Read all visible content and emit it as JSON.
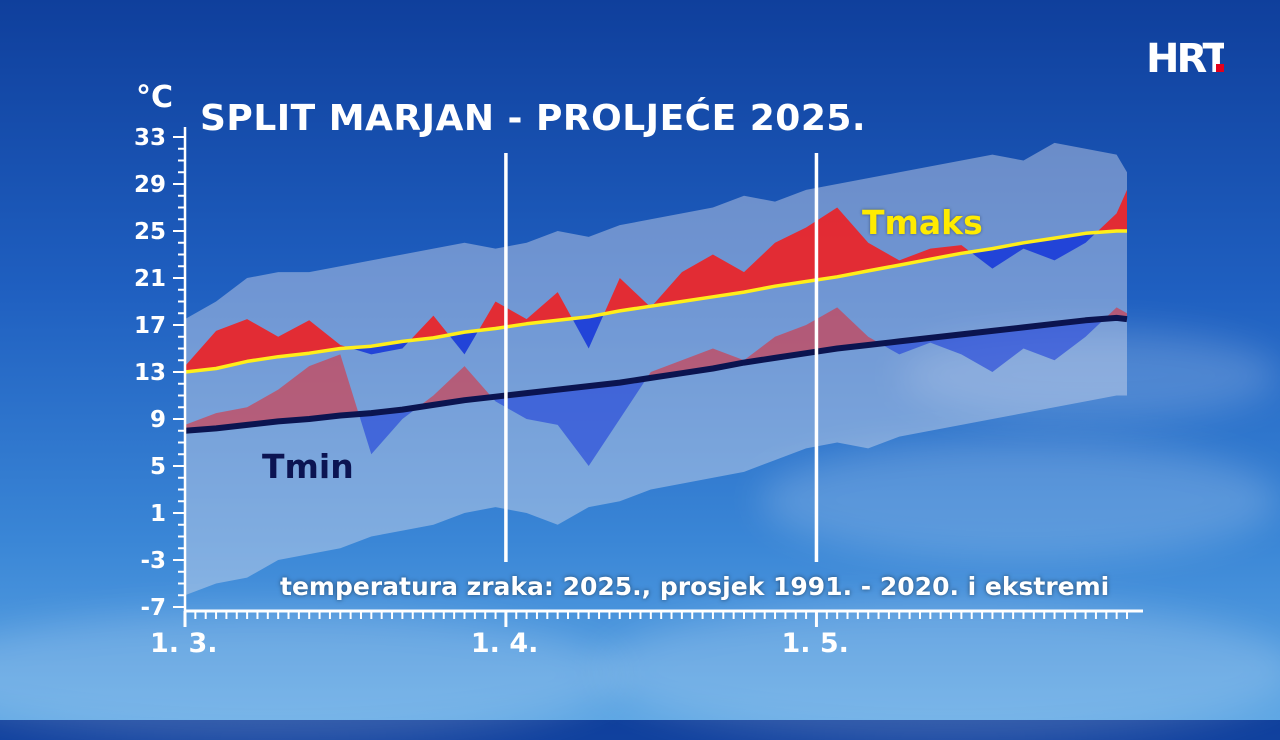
{
  "logo_text": "HRT",
  "chart_data": {
    "type": "area",
    "title": "SPLIT MARJAN - PROLJEĆE 2025.",
    "subtitle": "temperatura zraka: 2025., prosjek 1991. - 2020. i ekstremi",
    "unit": "°C",
    "ylim": [
      -7,
      33
    ],
    "yticks": [
      "33",
      "29",
      "25",
      "21",
      "17",
      "13",
      "9",
      "5",
      "1",
      "-3",
      "-7"
    ],
    "xlim": [
      0,
      91
    ],
    "xticks": [
      {
        "day": 0,
        "label": "1. 3."
      },
      {
        "day": 31,
        "label": "1. 4."
      },
      {
        "day": 61,
        "label": "1. 5."
      }
    ],
    "month_dividers": [
      31,
      61
    ],
    "series_labels": {
      "tmax": "Tmaks",
      "tmin": "Tmin"
    },
    "colors": {
      "above": "#e8262b",
      "below": "#1e3fd8",
      "tmax_avg": "#ffee1a",
      "tmin_avg": "#0b1450",
      "extremes": "#dfe3ee"
    },
    "x": [
      0,
      3,
      6,
      9,
      12,
      15,
      18,
      21,
      24,
      27,
      30,
      33,
      36,
      39,
      42,
      45,
      48,
      51,
      54,
      57,
      60,
      63,
      66,
      69,
      72,
      75,
      78,
      81,
      84,
      87,
      90,
      91
    ],
    "tmax_avg": [
      13,
      13.3,
      13.9,
      14.3,
      14.6,
      15,
      15.2,
      15.6,
      15.9,
      16.4,
      16.7,
      17.1,
      17.4,
      17.7,
      18.2,
      18.6,
      19,
      19.4,
      19.8,
      20.3,
      20.7,
      21.1,
      21.6,
      22.1,
      22.6,
      23.1,
      23.5,
      24,
      24.4,
      24.8,
      25,
      25
    ],
    "tmax_2025": [
      13.5,
      16.5,
      17.5,
      16,
      17.4,
      15.3,
      14.5,
      15,
      17.8,
      14.5,
      19,
      17.5,
      19.8,
      15,
      21,
      18.5,
      21.5,
      23,
      21.5,
      24,
      25.3,
      27,
      24,
      22.5,
      23.5,
      23.8,
      21.8,
      23.5,
      22.5,
      24,
      26.5,
      28.5
    ],
    "tmax_extreme_high": [
      17.5,
      19,
      21,
      21.5,
      21.5,
      22,
      22.5,
      23,
      23.5,
      24,
      23.5,
      24,
      25,
      24.5,
      25.5,
      26,
      26.5,
      27,
      28,
      27.5,
      28.5,
      29,
      29.5,
      30,
      30.5,
      31,
      31.5,
      31,
      32.5,
      32,
      31.5,
      30
    ],
    "tmin_avg": [
      8,
      8.2,
      8.5,
      8.8,
      9,
      9.3,
      9.5,
      9.8,
      10.2,
      10.6,
      10.9,
      11.2,
      11.5,
      11.8,
      12.1,
      12.5,
      12.9,
      13.3,
      13.8,
      14.2,
      14.6,
      15,
      15.3,
      15.6,
      15.9,
      16.2,
      16.5,
      16.8,
      17.1,
      17.4,
      17.6,
      17.5
    ],
    "tmin_2025": [
      8.5,
      9.5,
      10,
      11.5,
      13.5,
      14.5,
      6,
      9,
      11,
      13.5,
      10.5,
      9,
      8.5,
      5,
      9,
      13,
      14,
      15,
      14,
      16,
      17,
      18.5,
      16,
      14.5,
      15.5,
      14.5,
      13,
      15,
      14,
      16,
      18.5,
      18
    ],
    "tmin_extreme_low": [
      -6,
      -5,
      -4.5,
      -3,
      -2.5,
      -2,
      -1,
      -0.5,
      0,
      1,
      1.5,
      1,
      0,
      1.5,
      2,
      3,
      3.5,
      4,
      4.5,
      5.5,
      6.5,
      7,
      6.5,
      7.5,
      8,
      8.5,
      9,
      9.5,
      10,
      10.5,
      11,
      11
    ]
  }
}
